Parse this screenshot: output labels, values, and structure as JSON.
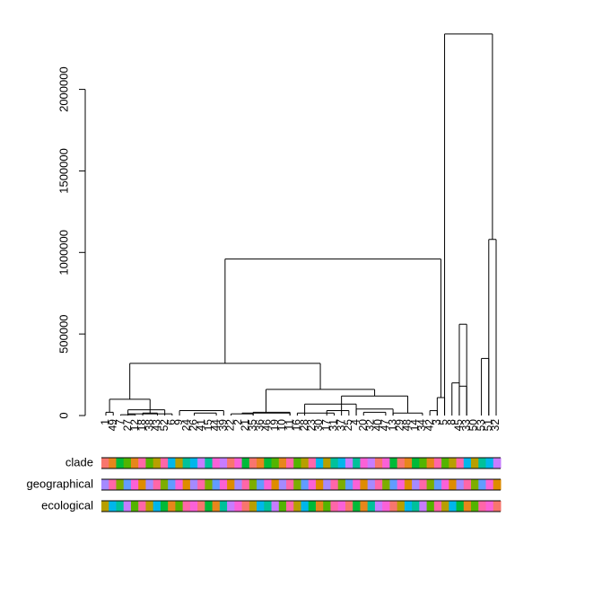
{
  "chart_data": {
    "type": "dendrogram",
    "y_ticks": [
      0,
      500000,
      1000000,
      1500000,
      2000000
    ],
    "y_tick_labels": [
      "0",
      "500000",
      "1000000",
      "1500000",
      "2000000"
    ],
    "ylim": [
      0,
      2350000
    ],
    "grid": false,
    "leaves": [
      "1",
      "49",
      "7",
      "27",
      "12",
      "18",
      "38",
      "43",
      "52",
      "6",
      "9",
      "24",
      "26",
      "41",
      "15",
      "44",
      "39",
      "22",
      "2",
      "21",
      "35",
      "36",
      "46",
      "19",
      "10",
      "11",
      "16",
      "28",
      "23",
      "30",
      "17",
      "31",
      "37",
      "25",
      "4",
      "20",
      "32",
      "40",
      "47",
      "13",
      "29",
      "48",
      "14",
      "34",
      "42",
      "3",
      "5",
      "8",
      "45",
      "33",
      "50",
      "53",
      "51",
      "32"
    ],
    "merges": [
      {
        "a": [
          0,
          1
        ],
        "h": 20000
      },
      {
        "a": [
          2,
          4
        ],
        "h": 5000
      },
      {
        "a": [
          3,
          9
        ],
        "h": 10000
      },
      {
        "a": [
          5,
          7
        ],
        "h": 15000
      },
      {
        "a": [
          2,
          8
        ],
        "h": 35000
      },
      {
        "a": [
          10,
          16
        ],
        "h": 30000
      },
      {
        "a": [
          12,
          15
        ],
        "h": 15000
      },
      {
        "a": [
          0,
          9
        ],
        "h": 100000
      },
      {
        "a": [
          17,
          20
        ],
        "h": 10000
      },
      {
        "a": [
          20,
          25
        ],
        "h": 20000
      },
      {
        "a": [
          17,
          25
        ],
        "h": 15000
      },
      {
        "a": [
          26,
          31
        ],
        "h": 15000
      },
      {
        "a": [
          30,
          33
        ],
        "h": 30000
      },
      {
        "a": [
          27,
          34
        ],
        "h": 70000
      },
      {
        "a": [
          34,
          39
        ],
        "h": 40000
      },
      {
        "a": [
          35,
          38
        ],
        "h": 20000
      },
      {
        "a": [
          39,
          43
        ],
        "h": 15000
      },
      {
        "a": [
          32,
          43
        ],
        "h": 120000
      },
      {
        "a": [
          17,
          43
        ],
        "h": 160000
      },
      {
        "a": [
          0,
          43
        ],
        "h": 320000
      },
      {
        "a": [
          44,
          45
        ],
        "h": 30000
      },
      {
        "a": [
          45,
          46
        ],
        "h": 110000
      },
      {
        "a": [
          47,
          48
        ],
        "h": 200000
      },
      {
        "a": [
          48,
          49
        ],
        "h": 180000
      },
      {
        "a": [
          48,
          49
        ],
        "h": 560000
      },
      {
        "a": [
          0,
          46
        ],
        "h": 960000
      },
      {
        "a": [
          51,
          52
        ],
        "h": 350000
      },
      {
        "a": [
          52,
          53
        ],
        "h": 1080000
      },
      {
        "a": [
          46,
          53
        ],
        "h": 2340000
      }
    ],
    "color_rows": [
      {
        "label": "clade"
      },
      {
        "label": "geographical"
      },
      {
        "label": "ecological"
      }
    ],
    "palette": [
      "#f8766d",
      "#c49a00",
      "#53b400",
      "#00c094",
      "#00b6eb",
      "#a58aff",
      "#fb61d7",
      "#7cae00",
      "#e7861b",
      "#ff77c9",
      "#b79f00",
      "#00bfc4",
      "#c77cff",
      "#f564e3",
      "#00ba38",
      "#619cff",
      "#ff66a8",
      "#de8c00",
      "#00c19a",
      "#9590ff"
    ]
  }
}
